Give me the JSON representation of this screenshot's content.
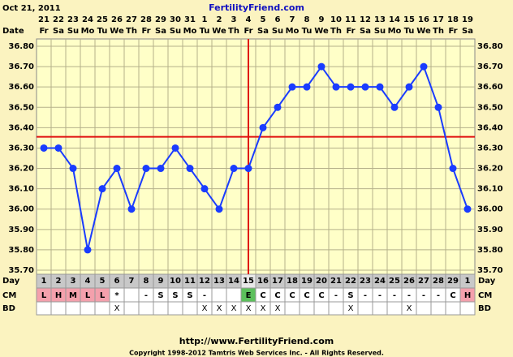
{
  "chart_data": {
    "type": "line",
    "date_header": "Oct 21, 2011",
    "site_title": "FertilityFriend.com",
    "date_row_label": "Date",
    "day_row_label": "Day",
    "cm_row_label": "CM",
    "bd_row_label": "BD",
    "footer_url": "http://www.FertilityFriend.com",
    "copyright": "Copyright 1998-2012 Tamtris Web Services Inc. - All Rights Reserved.",
    "dates": [
      21,
      22,
      23,
      24,
      25,
      26,
      27,
      28,
      29,
      30,
      31,
      1,
      2,
      3,
      4,
      5,
      6,
      7,
      8,
      9,
      10,
      11,
      12,
      13,
      14,
      15,
      16,
      17,
      18,
      19
    ],
    "weekdays": [
      "Fr",
      "Sa",
      "Su",
      "Mo",
      "Tu",
      "We",
      "Th",
      "Fr",
      "Sa",
      "Su",
      "Mo",
      "Tu",
      "We",
      "Th",
      "Fr",
      "Sa",
      "Su",
      "Mo",
      "Tu",
      "We",
      "Th",
      "Fr",
      "Sa",
      "Su",
      "Mo",
      "Tu",
      "We",
      "Th",
      "Fr",
      "Sa"
    ],
    "cycle_days": [
      1,
      2,
      3,
      4,
      5,
      6,
      7,
      8,
      9,
      10,
      11,
      12,
      13,
      14,
      15,
      16,
      17,
      18,
      19,
      20,
      21,
      22,
      23,
      24,
      25,
      26,
      27,
      28,
      29,
      1
    ],
    "series": [
      {
        "name": "Temperature",
        "color": "#1a3cff",
        "values": [
          36.3,
          36.3,
          36.2,
          35.8,
          36.1,
          36.2,
          36.0,
          36.2,
          36.2,
          36.3,
          36.2,
          36.1,
          36.0,
          36.2,
          36.2,
          36.4,
          36.5,
          36.6,
          36.6,
          36.7,
          36.6,
          36.6,
          36.6,
          36.6,
          36.5,
          36.6,
          36.7,
          36.5,
          36.2,
          36.0
        ]
      }
    ],
    "cm": [
      "L",
      "H",
      "M",
      "L",
      "L",
      "*",
      null,
      "-",
      "S",
      "S",
      "S",
      "-",
      null,
      null,
      "E",
      "C",
      "C",
      "C",
      "C",
      "C",
      "-",
      "S",
      "-",
      "-",
      "-",
      "-",
      "-",
      "-",
      "C",
      "H"
    ],
    "bd": [
      null,
      null,
      null,
      null,
      null,
      "X",
      null,
      null,
      null,
      null,
      null,
      "X",
      "X",
      "X",
      "X",
      "X",
      "X",
      null,
      null,
      null,
      null,
      "X",
      null,
      null,
      null,
      "X",
      null,
      null,
      null,
      null
    ],
    "cell_colors": {
      "L": "#f4a0ac",
      "H": "#f4a0ac",
      "M": "#f4a0ac",
      "E": "#5cc05c"
    },
    "coverline": 36.355,
    "coverline_color": "#e01010",
    "ovulation_day": 15,
    "ylim": [
      35.7,
      36.8
    ],
    "yticks": [
      {
        "value": 35.7,
        "label": "35.70"
      },
      {
        "value": 35.8,
        "label": "35.80"
      },
      {
        "value": 35.9,
        "label": "35.90"
      },
      {
        "value": 36.0,
        "label": "36.00"
      },
      {
        "value": 36.1,
        "label": "36.10"
      },
      {
        "value": 36.2,
        "label": "36.20"
      },
      {
        "value": 36.3,
        "label": "36.30"
      },
      {
        "value": 36.4,
        "label": "36.40"
      },
      {
        "value": 36.5,
        "label": "36.50"
      },
      {
        "value": 36.6,
        "label": "36.60"
      },
      {
        "value": 36.7,
        "label": "36.70"
      },
      {
        "value": 36.8,
        "label": "36.80"
      }
    ],
    "grid": true
  }
}
